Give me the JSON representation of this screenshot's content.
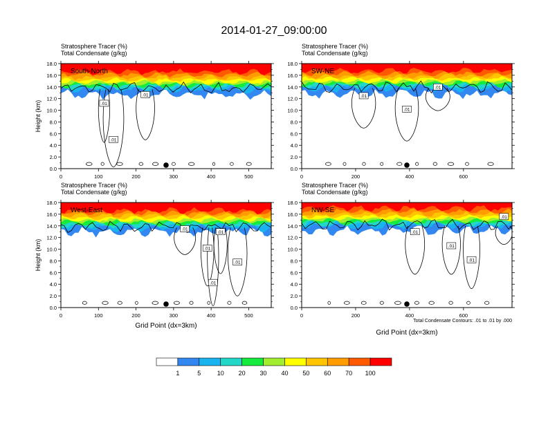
{
  "title": "2014-01-27_09:00:00",
  "chart_data": [
    {
      "type": "heatmap",
      "label": "South-North",
      "heading": [
        "Stratosphere Tracer   (%)",
        "Total Condensate   (g/kg)"
      ],
      "ylabel": "Height (km)",
      "xlabel": "",
      "xlim": [
        0,
        560
      ],
      "ylim": [
        0,
        18
      ],
      "xticks": [
        0,
        100,
        200,
        300,
        400,
        500
      ],
      "yticks": [
        "0.0",
        "2.0",
        "4.0",
        "6.0",
        "8.0",
        "10.0",
        "12.0",
        "14.0",
        "16.0",
        "18.0"
      ],
      "marker_x": 280,
      "levels": {
        "red_bottom": 16.6,
        "orange_bottom": 15.6,
        "yellow_bottom": 14.8,
        "green_bottom": 14.2,
        "cyan_bottom": 13.6,
        "blue_bottom": 12.7
      },
      "contour_labels": [
        {
          "text": ".01",
          "x": 115,
          "y": 11.2
        },
        {
          "text": ".01",
          "x": 225,
          "y": 12.7
        },
        {
          "text": ".01",
          "x": 140,
          "y": 5.0
        }
      ]
    },
    {
      "type": "heatmap",
      "label": "SW-NE",
      "heading": [
        "Stratosphere Tracer   (%)",
        "Total Condensate   (g/kg)"
      ],
      "ylabel": "",
      "xlabel": "",
      "xlim": [
        0,
        780
      ],
      "ylim": [
        0,
        18
      ],
      "xticks": [
        0,
        200,
        400,
        600
      ],
      "yticks": [
        "0.0",
        "2.0",
        "4.0",
        "6.0",
        "8.0",
        "10.0",
        "12.0",
        "14.0",
        "16.0",
        "18.0"
      ],
      "marker_x": 390,
      "levels": {
        "red_bottom": 16.8,
        "orange_bottom": 15.8,
        "yellow_bottom": 15.0,
        "green_bottom": 14.4,
        "cyan_bottom": 13.8,
        "blue_bottom": 12.8
      },
      "contour_labels": [
        {
          "text": ".01",
          "x": 230,
          "y": 12.5
        },
        {
          "text": ".01",
          "x": 390,
          "y": 10.2
        },
        {
          "text": ".01",
          "x": 505,
          "y": 14.0
        }
      ]
    },
    {
      "type": "heatmap",
      "label": "West-East",
      "heading": [
        "Stratosphere Tracer   (%)",
        "Total Condensate   (g/kg)"
      ],
      "ylabel": "Height (km)",
      "xlabel": "Grid Point (dx=3km)",
      "xlim": [
        0,
        560
      ],
      "ylim": [
        0,
        18
      ],
      "xticks": [
        0,
        100,
        200,
        300,
        400,
        500
      ],
      "yticks": [
        "0.0",
        "2.0",
        "4.0",
        "6.0",
        "8.0",
        "10.0",
        "12.0",
        "14.0",
        "16.0",
        "18.0"
      ],
      "marker_x": 280,
      "levels": {
        "red_bottom": 16.6,
        "orange_bottom": 15.8,
        "yellow_bottom": 15.0,
        "green_bottom": 14.4,
        "cyan_bottom": 13.7,
        "blue_bottom": 13.0
      },
      "contour_labels": [
        {
          "text": ".01",
          "x": 330,
          "y": 13.5
        },
        {
          "text": ".01",
          "x": 425,
          "y": 13.0
        },
        {
          "text": ".01",
          "x": 390,
          "y": 10.2
        },
        {
          "text": ".01",
          "x": 470,
          "y": 7.8
        },
        {
          "text": ".01",
          "x": 405,
          "y": 4.3
        }
      ]
    },
    {
      "type": "heatmap",
      "label": "NW-SE",
      "heading": [
        "Stratosphere Tracer   (%)",
        "Total Condensate   (g/kg)"
      ],
      "ylabel": "",
      "xlabel": "Grid Point (dx=3km)",
      "xlim": [
        0,
        780
      ],
      "ylim": [
        0,
        18
      ],
      "xticks": [
        0,
        200,
        400,
        600
      ],
      "yticks": [
        "0.0",
        "2.0",
        "4.0",
        "6.0",
        "8.0",
        "10.0",
        "12.0",
        "14.0",
        "16.0",
        "18.0"
      ],
      "marker_x": 390,
      "levels": {
        "red_bottom": 17.0,
        "orange_bottom": 16.0,
        "yellow_bottom": 15.2,
        "green_bottom": 14.6,
        "cyan_bottom": 14.0,
        "blue_bottom": 13.2
      },
      "contour_labels": [
        {
          "text": ".01",
          "x": 420,
          "y": 13.0
        },
        {
          "text": ".01",
          "x": 555,
          "y": 10.6
        },
        {
          "text": ".01",
          "x": 630,
          "y": 8.2
        },
        {
          "text": ".01",
          "x": 750,
          "y": 15.6
        }
      ],
      "footnote": "Total Condensate Contours: .01 to .01 by .000"
    }
  ],
  "colorbar": {
    "colors": [
      "#ffffff",
      "#3287f0",
      "#19b4f0",
      "#23d7c8",
      "#15eb3c",
      "#a0ee2d",
      "#ffff00",
      "#ffc500",
      "#ff9c00",
      "#ff5a00",
      "#ff0000"
    ],
    "labels": [
      "1",
      "5",
      "10",
      "20",
      "30",
      "40",
      "50",
      "60",
      "70",
      "100"
    ]
  }
}
